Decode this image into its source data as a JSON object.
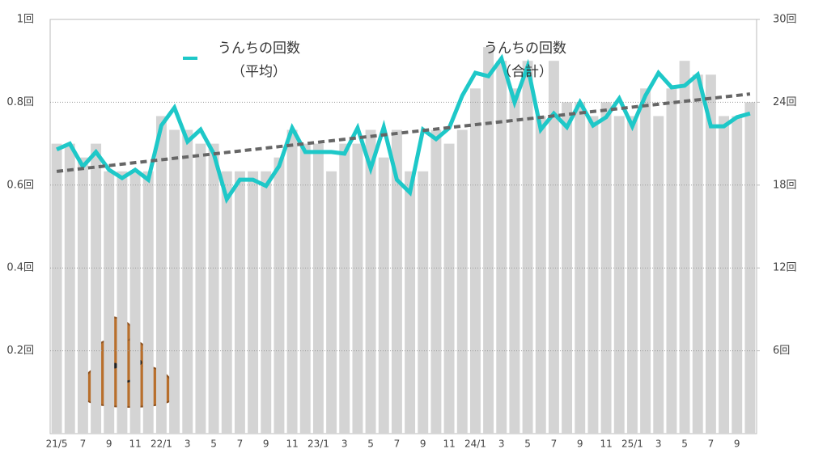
{
  "chart_data": {
    "type": "bar-line",
    "categories": [
      "21/5",
      null,
      "7",
      null,
      "9",
      null,
      "11",
      null,
      "22/1",
      null,
      "3",
      null,
      "5",
      null,
      "7",
      null,
      "9",
      null,
      "11",
      null,
      "23/1",
      null,
      "3",
      null,
      "5",
      null,
      "7",
      null,
      "9",
      null,
      "11",
      null,
      "24/1",
      null,
      "3",
      null,
      "5",
      null,
      "7",
      null,
      "9",
      null,
      "11",
      null,
      "25/1",
      null,
      "3",
      null,
      "5",
      null,
      "7",
      null,
      "9",
      null
    ],
    "series": [
      {
        "name": "うんちの回数\n（平均）",
        "type": "line",
        "color": "#1ec8c8",
        "axis": "y",
        "values": [
          0.686,
          0.7,
          0.645,
          0.68,
          0.637,
          0.617,
          0.637,
          0.613,
          0.744,
          0.787,
          0.705,
          0.734,
          0.676,
          0.566,
          0.613,
          0.613,
          0.598,
          0.646,
          0.738,
          0.68,
          0.68,
          0.68,
          0.676,
          0.738,
          0.64,
          0.74,
          0.613,
          0.582,
          0.734,
          0.711,
          0.738,
          0.816,
          0.871,
          0.863,
          0.906,
          0.8,
          0.887,
          0.734,
          0.773,
          0.74,
          0.8,
          0.744,
          0.764,
          0.809,
          0.742,
          0.816,
          0.871,
          0.836,
          0.84,
          0.867,
          0.742,
          0.742,
          0.764,
          0.773
        ]
      },
      {
        "name": "うんちの回数\n（合計）",
        "type": "bar",
        "color": "#d4d4d4",
        "axis": "y2",
        "values": [
          21,
          21,
          20,
          21,
          19,
          19,
          19,
          19,
          23,
          22,
          22,
          21,
          21,
          19,
          19,
          19,
          19,
          20,
          22,
          21,
          21,
          19,
          21,
          21,
          22,
          20,
          22,
          19,
          19,
          22,
          21,
          22,
          25,
          28,
          27,
          25,
          27,
          23,
          27,
          24,
          24,
          23,
          24,
          23,
          23,
          25,
          23,
          25,
          27,
          26,
          26,
          23,
          23,
          24
        ]
      }
    ],
    "trend": {
      "color": "#666666",
      "values": [
        0.633,
        0.82
      ]
    },
    "ylim": [
      0,
      1
    ],
    "yticks": [
      {
        "value": 0.2,
        "label": "0.2回"
      },
      {
        "value": 0.4,
        "label": "0.4回"
      },
      {
        "value": 0.6,
        "label": "0.6回"
      },
      {
        "value": 0.8,
        "label": "0.8回"
      },
      {
        "value": 1,
        "label": "1回"
      }
    ],
    "y2lim": [
      0,
      30
    ],
    "y2ticks": [
      {
        "value": 6,
        "label": "6回"
      },
      {
        "value": 12,
        "label": "12回"
      },
      {
        "value": 18,
        "label": "18回"
      },
      {
        "value": 24,
        "label": "24回"
      },
      {
        "value": 30,
        "label": "30回"
      }
    ],
    "grid": true
  }
}
